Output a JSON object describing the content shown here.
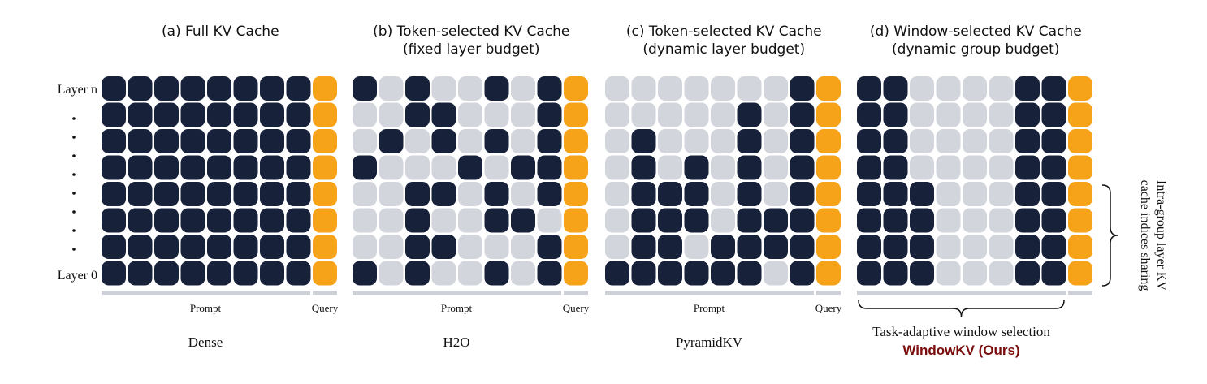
{
  "colors": {
    "kept": "#17213a",
    "evicted": "#d2d5dc",
    "query": "#f6a31a",
    "bar": "#cdd0d6",
    "ours": "#7a0c0c"
  },
  "layer_labels": {
    "top": "Layer n",
    "bottom": "Layer 0"
  },
  "side_label": {
    "line1": "Intra-group layer KV",
    "line2": "cache indices sharing"
  },
  "panels": [
    {
      "title_line1": "(a) Full KV Cache",
      "title_line2": "",
      "prompt_label": "Prompt",
      "query_label": "Query",
      "method": "Dense",
      "grid": [
        "11111111",
        "11111111",
        "11111111",
        "11111111",
        "11111111",
        "11111111",
        "11111111",
        "11111111"
      ]
    },
    {
      "title_line1": "(b) Token-selected KV Cache",
      "title_line2": "(fixed layer budget)",
      "prompt_label": "Prompt",
      "query_label": "Query",
      "method": "H2O",
      "grid": [
        "10100101",
        "00110001",
        "01010101",
        "10001011",
        "00110101",
        "00100110",
        "00110001",
        "10100101"
      ]
    },
    {
      "title_line1": "(c) Token-selected KV Cache",
      "title_line2": "(dynamic layer budget)",
      "prompt_label": "Prompt",
      "query_label": "Query",
      "method": "PyramidKV",
      "grid": [
        "00000001",
        "00000101",
        "01000101",
        "01010101",
        "01110101",
        "01110111",
        "01101111",
        "11111101"
      ]
    },
    {
      "title_line1": "(d) Window-selected KV Cache",
      "title_line2": "(dynamic group budget)",
      "prompt_label": "",
      "query_label": "",
      "method": "Task-adaptive window selection",
      "ours_label": "WindowKV (Ours)",
      "grid": [
        "11000011",
        "11000011",
        "11000011",
        "11000011",
        "11100011",
        "11100011",
        "11100011",
        "11100011"
      ]
    }
  ]
}
